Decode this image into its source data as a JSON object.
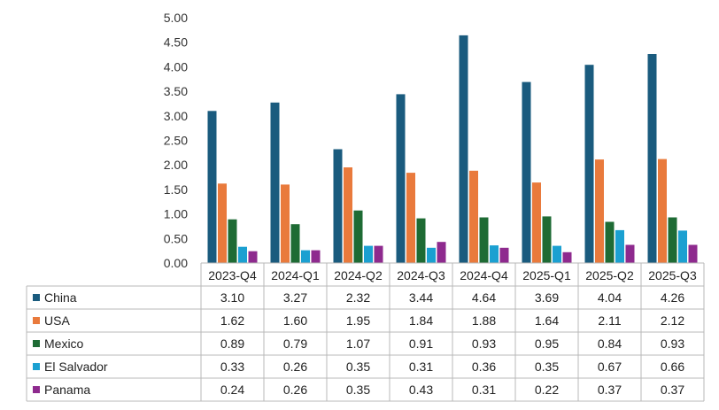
{
  "chart_data": {
    "type": "bar",
    "title": "",
    "xlabel": "",
    "ylabel": "",
    "ylim": [
      0,
      5
    ],
    "ytick_labels": [
      "0.00",
      "0.50",
      "1.00",
      "1.50",
      "2.00",
      "2.50",
      "3.00",
      "3.50",
      "4.00",
      "4.50",
      "5.00"
    ],
    "grid": false,
    "legend": "data-table-left",
    "categories": [
      "2023-Q4",
      "2024-Q1",
      "2024-Q2",
      "2024-Q3",
      "2024-Q4",
      "2025-Q1",
      "2025-Q2",
      "2025-Q3"
    ],
    "series": [
      {
        "name": "China",
        "color": "#1a5b7e",
        "values": [
          3.1,
          3.27,
          2.32,
          3.44,
          4.64,
          3.69,
          4.04,
          4.26
        ],
        "labels": [
          "3.10",
          "3.27",
          "2.32",
          "3.44",
          "4.64",
          "3.69",
          "4.04",
          "4.26"
        ]
      },
      {
        "name": "USA",
        "color": "#e97a3c",
        "values": [
          1.62,
          1.6,
          1.95,
          1.84,
          1.88,
          1.64,
          2.11,
          2.12
        ],
        "labels": [
          "1.62",
          "1.60",
          "1.95",
          "1.84",
          "1.88",
          "1.64",
          "2.11",
          "2.12"
        ]
      },
      {
        "name": "Mexico",
        "color": "#1e6b34",
        "values": [
          0.89,
          0.79,
          1.07,
          0.91,
          0.93,
          0.95,
          0.84,
          0.93
        ],
        "labels": [
          "0.89",
          "0.79",
          "1.07",
          "0.91",
          "0.93",
          "0.95",
          "0.84",
          "0.93"
        ]
      },
      {
        "name": "El Salvador",
        "color": "#1ba0d1",
        "values": [
          0.33,
          0.26,
          0.35,
          0.31,
          0.36,
          0.35,
          0.67,
          0.66
        ],
        "labels": [
          "0.33",
          "0.26",
          "0.35",
          "0.31",
          "0.36",
          "0.35",
          "0.67",
          "0.66"
        ]
      },
      {
        "name": "Panama",
        "color": "#8e2a8e",
        "values": [
          0.24,
          0.26,
          0.35,
          0.43,
          0.31,
          0.22,
          0.37,
          0.37
        ],
        "labels": [
          "0.24",
          "0.26",
          "0.35",
          "0.43",
          "0.31",
          "0.22",
          "0.37",
          "0.37"
        ]
      }
    ]
  }
}
